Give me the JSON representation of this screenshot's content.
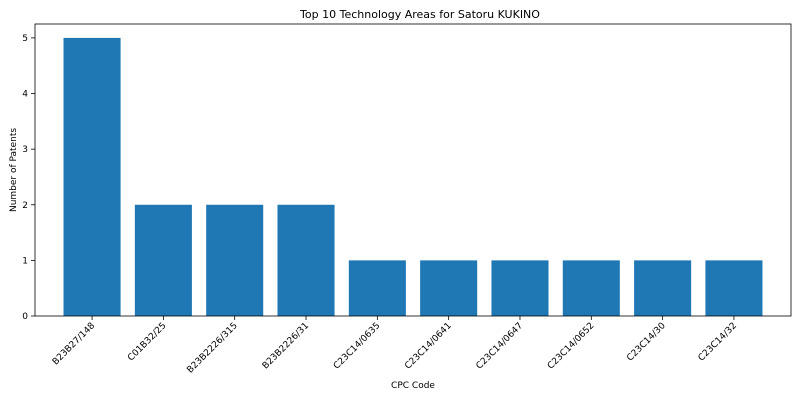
{
  "chart_data": {
    "type": "bar",
    "title": "Top 10 Technology Areas for Satoru KUKINO",
    "xlabel": "CPC Code",
    "ylabel": "Number of Patents",
    "categories": [
      "B23B27/148",
      "C01B32/25",
      "B23B2226/315",
      "B23B2226/31",
      "C23C14/0635",
      "C23C14/0641",
      "C23C14/0647",
      "C23C14/0652",
      "C23C14/30",
      "C23C14/32"
    ],
    "values": [
      5,
      2,
      2,
      2,
      1,
      1,
      1,
      1,
      1,
      1
    ],
    "ylim": [
      0,
      5.25
    ],
    "yticks": [
      "0",
      "1",
      "2",
      "3",
      "4",
      "5"
    ],
    "bar_color": "#1f77b4",
    "grid": false,
    "legend": "none"
  }
}
